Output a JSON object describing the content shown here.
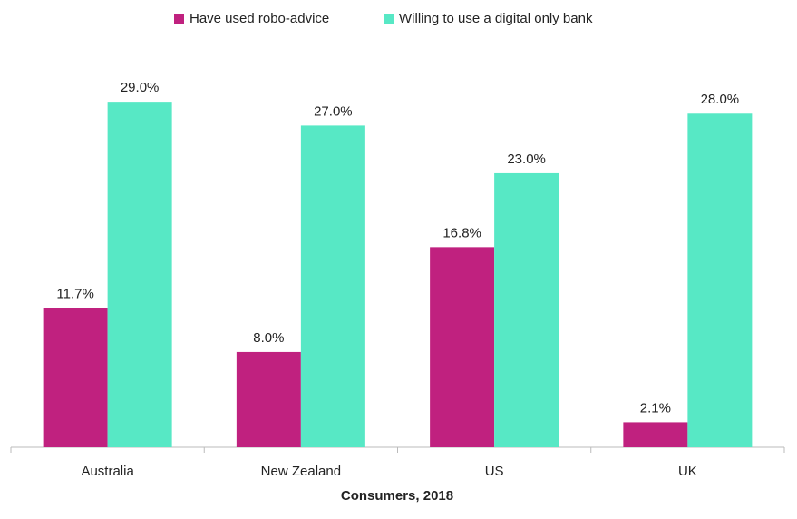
{
  "chart_data": {
    "type": "bar",
    "x_label": "Consumers, 2018",
    "categories": [
      "Australia",
      "New Zealand",
      "US",
      "UK"
    ],
    "series": [
      {
        "name": "Have used robo-advice",
        "color": "#c0217f",
        "values": [
          11.7,
          8.0,
          16.8,
          2.1
        ],
        "value_labels": [
          "11.7%",
          "8.0%",
          "16.8%",
          "2.1%"
        ]
      },
      {
        "name": "Willing to use a digital only bank",
        "color": "#57e8c5",
        "values": [
          29.0,
          27.0,
          23.0,
          28.0
        ],
        "value_labels": [
          "29.0%",
          "27.0%",
          "23.0%",
          "28.0%"
        ]
      }
    ],
    "ylim": [
      0,
      30
    ],
    "legend": "top"
  }
}
